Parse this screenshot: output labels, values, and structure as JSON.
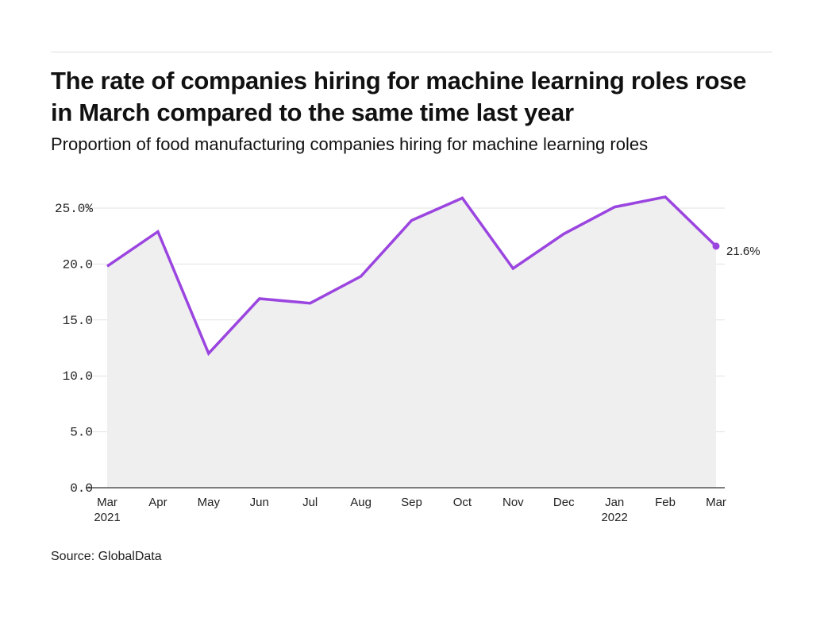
{
  "header": {
    "title": "The rate of companies hiring for machine learning roles rose in March compared to the same time last year",
    "subtitle": "Proportion of food manufacturing companies hiring for machine learning roles"
  },
  "footer": {
    "source": "Source: GlobalData"
  },
  "colors": {
    "line": "#9b45e0",
    "area": "#efefef",
    "grid": "#e2e2e2",
    "axis": "#555555"
  },
  "chart_data": {
    "type": "line",
    "title": "The rate of companies hiring for machine learning roles rose in March compared to the same time last year",
    "subtitle": "Proportion of food manufacturing companies hiring for machine learning roles",
    "categories": [
      "Mar",
      "Apr",
      "May",
      "Jun",
      "Jul",
      "Aug",
      "Sep",
      "Oct",
      "Nov",
      "Dec",
      "Jan",
      "Feb",
      "Mar"
    ],
    "category_years": [
      "2021",
      "",
      "",
      "",
      "",
      "",
      "",
      "",
      "",
      "",
      "2022",
      "",
      ""
    ],
    "series": [
      {
        "name": "Proportion of companies hiring",
        "values": [
          19.8,
          22.9,
          12.0,
          16.9,
          16.5,
          18.9,
          23.9,
          25.9,
          19.6,
          22.7,
          25.1,
          26.0,
          21.6
        ]
      }
    ],
    "yticks": [
      "0.0",
      "5.0",
      "10.0",
      "15.0",
      "20.0",
      "25.0%"
    ],
    "ytick_values": [
      0,
      5,
      10,
      15,
      20,
      25
    ],
    "ylim": [
      0,
      25
    ],
    "xlabel": "",
    "ylabel": "",
    "end_label": "21.6%",
    "grid": true,
    "legend": "none",
    "area_fill": true
  }
}
